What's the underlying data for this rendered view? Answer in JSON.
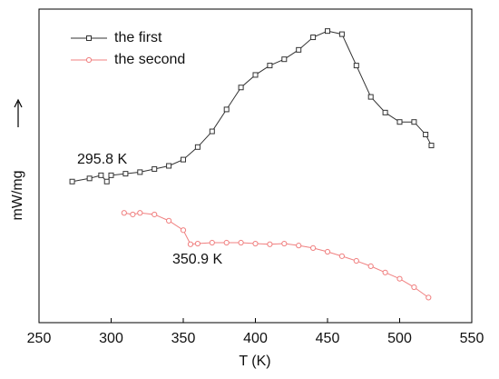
{
  "chart_data": {
    "type": "line",
    "xlabel": "T (K)",
    "ylabel": "mW/mg",
    "xlim": [
      250,
      550
    ],
    "xticks": [
      250,
      300,
      350,
      400,
      450,
      500,
      550
    ],
    "ylim": [
      0,
      100
    ],
    "legend": "upper left",
    "series": [
      {
        "name": "the first",
        "color": "#333333",
        "marker": "square",
        "x": [
          273,
          285,
          293,
          297,
          300,
          310,
          320,
          330,
          340,
          350,
          360,
          370,
          380,
          390,
          400,
          410,
          420,
          430,
          440,
          450,
          460,
          470,
          480,
          490,
          500,
          510,
          518,
          522
        ],
        "values": [
          45,
          46,
          47,
          45,
          47,
          47.5,
          48,
          49,
          50,
          52,
          56,
          61,
          68,
          75,
          79,
          82,
          84,
          87,
          91,
          93,
          92,
          82,
          72,
          67,
          64,
          64,
          60,
          56.5
        ]
      },
      {
        "name": "the second",
        "color": "#f08080",
        "marker": "circle",
        "x": [
          309,
          315,
          320,
          330,
          340,
          350,
          355,
          360,
          370,
          380,
          390,
          400,
          410,
          420,
          430,
          440,
          450,
          460,
          470,
          480,
          490,
          500,
          510,
          520
        ],
        "values": [
          35,
          34.5,
          35,
          34.5,
          32.5,
          29.5,
          25,
          25.2,
          25.5,
          25.5,
          25.5,
          25.2,
          25,
          25.2,
          24.6,
          23.8,
          22.6,
          21.2,
          19.7,
          18,
          16,
          14,
          11.3,
          8
        ]
      }
    ],
    "annotations": [
      {
        "text": "295.8 K"
      },
      {
        "text": "350.9 K"
      }
    ]
  }
}
